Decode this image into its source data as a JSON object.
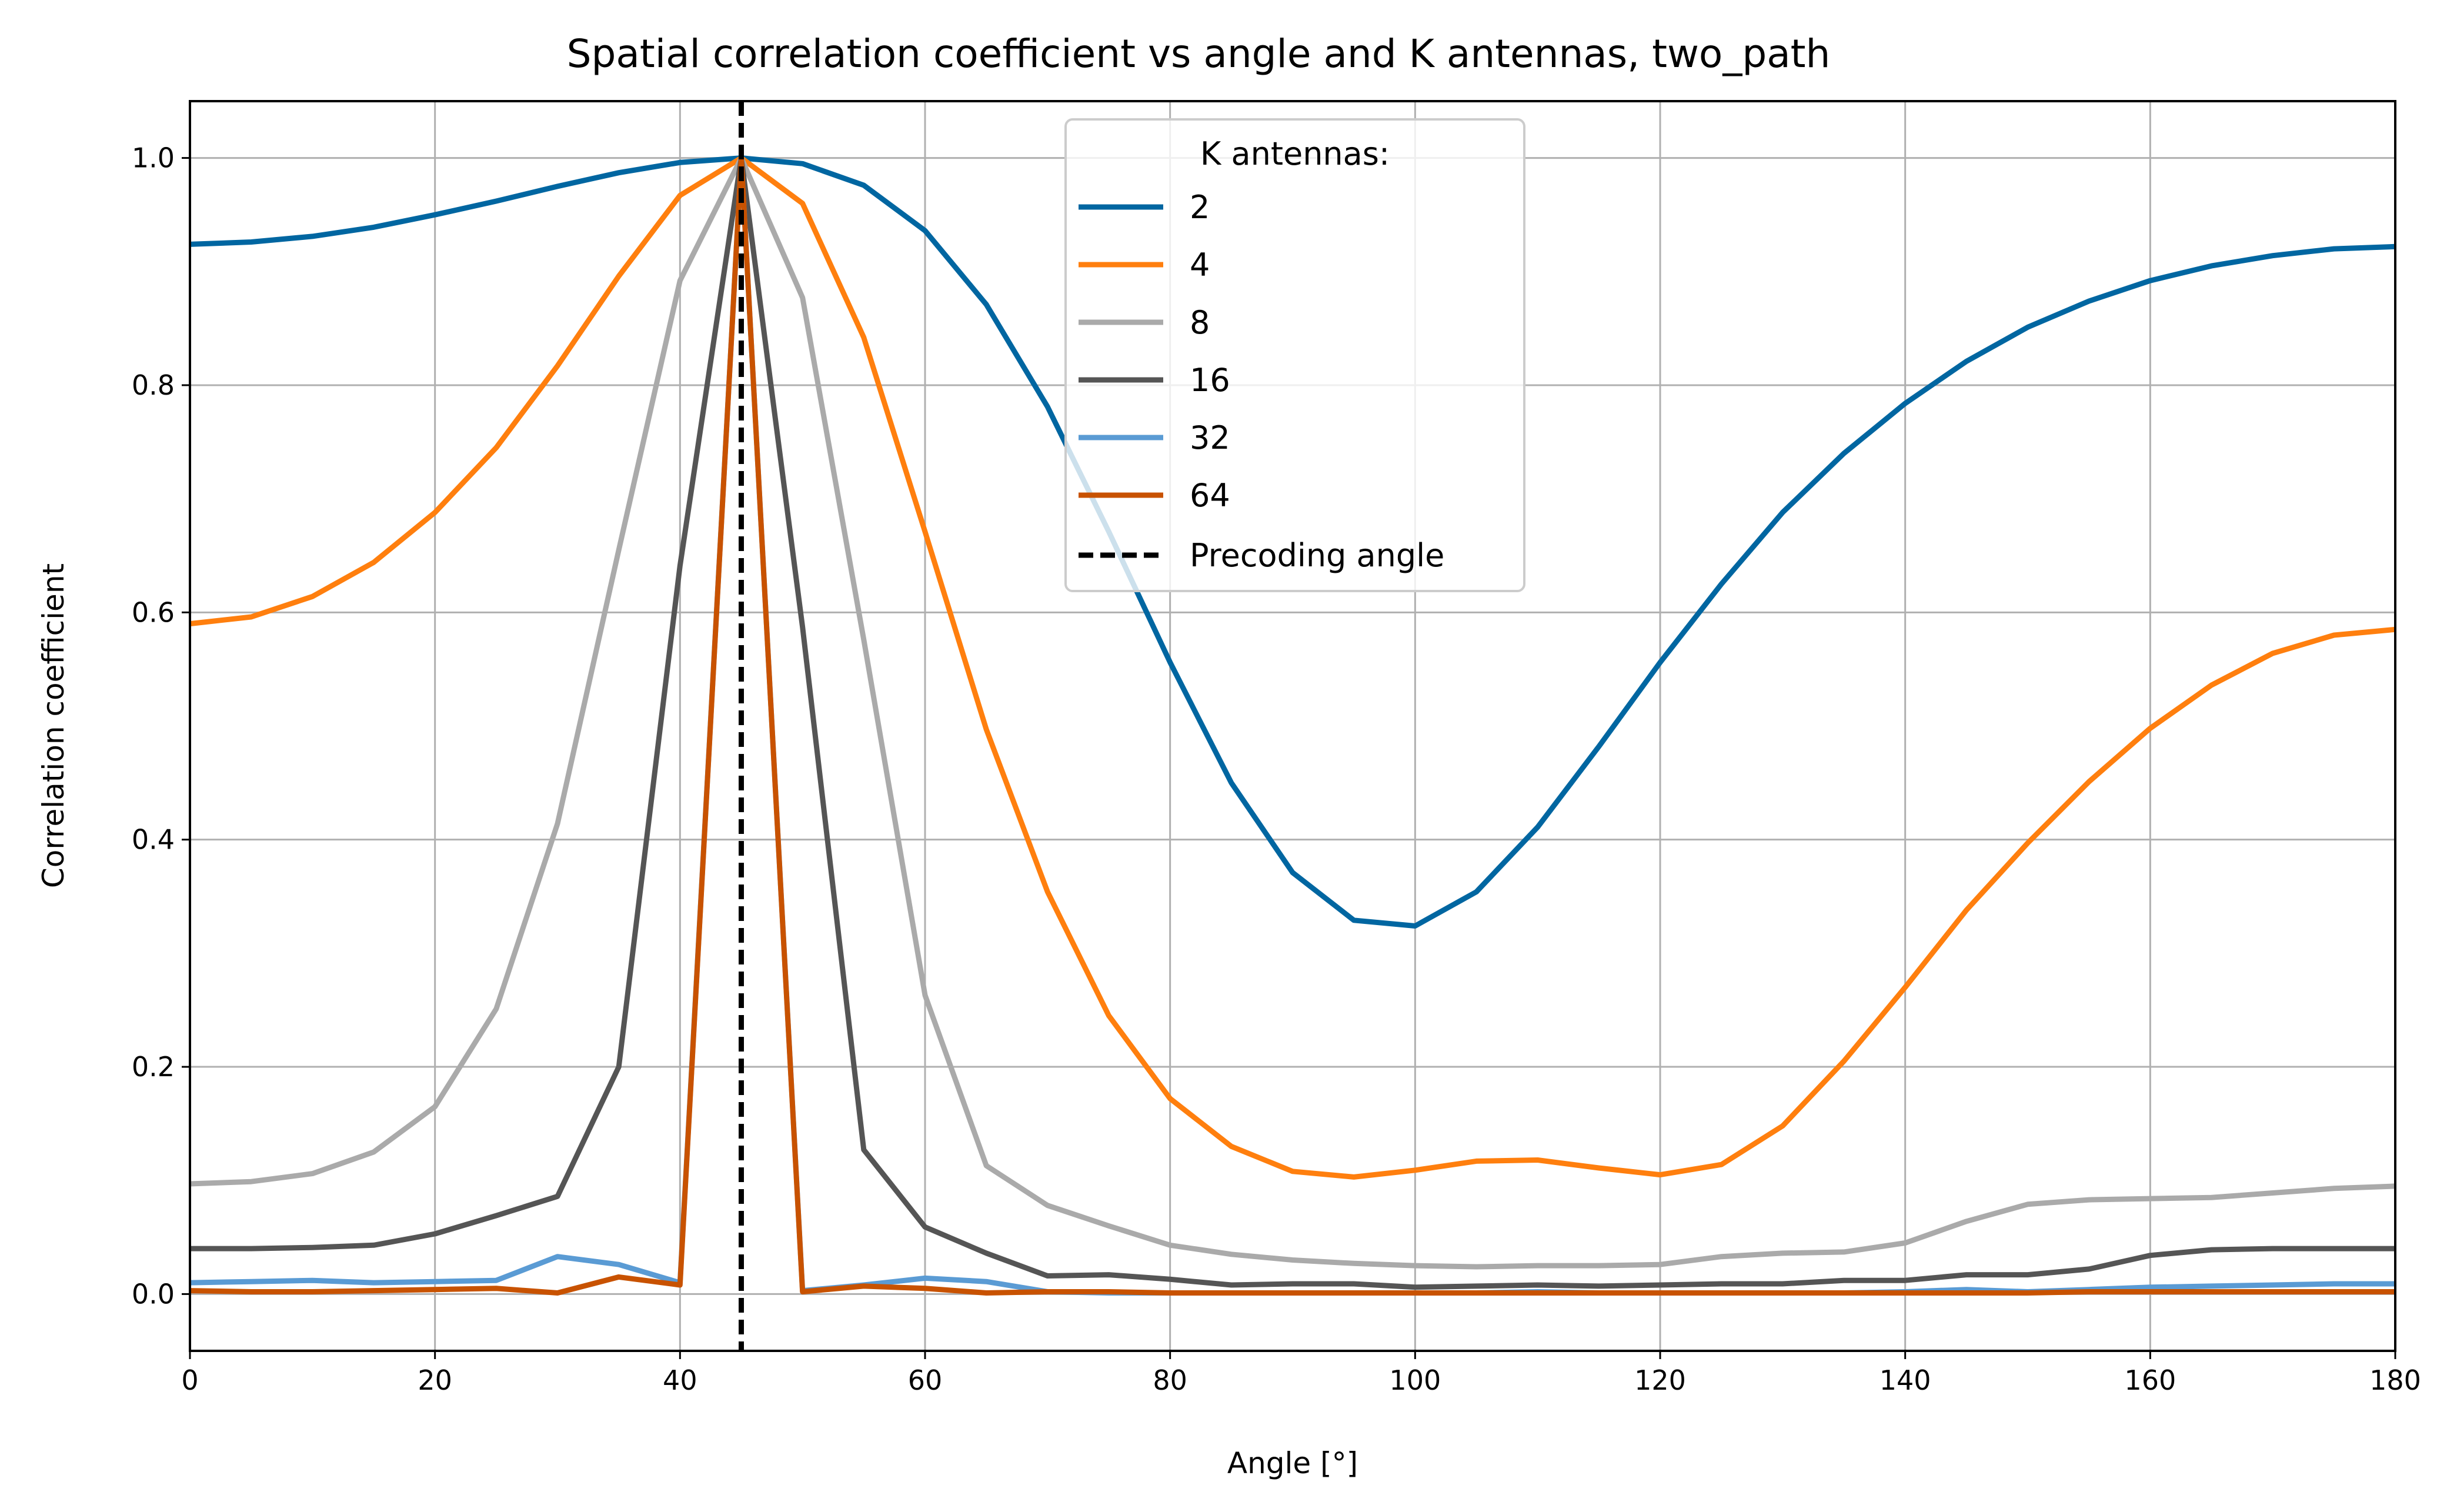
{
  "chart_data": {
    "type": "line",
    "title": "Spatial correlation coefficient vs angle and K antennas, two_path",
    "xlabel": "Angle [°]",
    "ylabel": "Correlation coefficient",
    "xlim": [
      0,
      180
    ],
    "ylim": [
      -0.05,
      1.05
    ],
    "xticks": [
      0,
      20,
      40,
      60,
      80,
      100,
      120,
      140,
      160,
      180
    ],
    "xtick_labels": [
      "0",
      "20",
      "40",
      "60",
      "80",
      "100",
      "120",
      "140",
      "160",
      "180"
    ],
    "yticks": [
      0.0,
      0.2,
      0.4,
      0.6,
      0.8,
      1.0
    ],
    "ytick_labels": [
      "0.0",
      "0.2",
      "0.4",
      "0.6",
      "0.8",
      "1.0"
    ],
    "grid": true,
    "legend": {
      "title": "K antennas:",
      "placement": "top-center",
      "precoding_label": "Precoding angle"
    },
    "precoding_angle": 45,
    "precoding_color": "#000000",
    "x": [
      0,
      5,
      10,
      15,
      20,
      25,
      30,
      35,
      40,
      45,
      50,
      55,
      60,
      65,
      70,
      75,
      80,
      85,
      90,
      95,
      100,
      105,
      110,
      115,
      120,
      125,
      130,
      135,
      140,
      145,
      150,
      155,
      160,
      165,
      170,
      175,
      180
    ],
    "series": [
      {
        "name": "2",
        "color": "#0066a1",
        "values": [
          0.924,
          0.926,
          0.931,
          0.939,
          0.95,
          0.962,
          0.975,
          0.987,
          0.996,
          1.0,
          0.995,
          0.976,
          0.936,
          0.871,
          0.781,
          0.671,
          0.556,
          0.45,
          0.371,
          0.329,
          0.324,
          0.354,
          0.411,
          0.482,
          0.556,
          0.625,
          0.688,
          0.74,
          0.784,
          0.821,
          0.851,
          0.874,
          0.892,
          0.905,
          0.914,
          0.92,
          0.922
        ]
      },
      {
        "name": "4",
        "color": "#ff7f0e",
        "values": [
          0.59,
          0.596,
          0.614,
          0.644,
          0.688,
          0.745,
          0.817,
          0.896,
          0.967,
          1.0,
          0.96,
          0.842,
          0.671,
          0.497,
          0.354,
          0.245,
          0.172,
          0.13,
          0.108,
          0.103,
          0.109,
          0.117,
          0.118,
          0.111,
          0.105,
          0.114,
          0.148,
          0.205,
          0.27,
          0.338,
          0.397,
          0.451,
          0.498,
          0.536,
          0.564,
          0.58,
          0.585
        ]
      },
      {
        "name": "8",
        "color": "#aaaaaa",
        "values": [
          0.097,
          0.099,
          0.106,
          0.125,
          0.165,
          0.251,
          0.414,
          0.655,
          0.892,
          1.0,
          0.877,
          0.576,
          0.263,
          0.113,
          0.078,
          0.06,
          0.043,
          0.035,
          0.03,
          0.027,
          0.025,
          0.024,
          0.025,
          0.025,
          0.026,
          0.033,
          0.036,
          0.037,
          0.045,
          0.064,
          0.079,
          0.083,
          0.084,
          0.085,
          0.089,
          0.093,
          0.095
        ]
      },
      {
        "name": "16",
        "color": "#555555",
        "values": [
          0.04,
          0.04,
          0.041,
          0.043,
          0.053,
          0.069,
          0.086,
          0.2,
          0.641,
          1.0,
          0.587,
          0.127,
          0.059,
          0.036,
          0.016,
          0.017,
          0.013,
          0.008,
          0.009,
          0.009,
          0.006,
          0.007,
          0.008,
          0.007,
          0.008,
          0.009,
          0.009,
          0.012,
          0.012,
          0.017,
          0.017,
          0.022,
          0.034,
          0.039,
          0.04,
          0.04,
          0.04
        ]
      },
      {
        "name": "32",
        "color": "#5a9bd4",
        "values": [
          0.01,
          0.011,
          0.012,
          0.01,
          0.011,
          0.012,
          0.033,
          0.026,
          0.01,
          1.0,
          0.003,
          0.008,
          0.014,
          0.011,
          0.002,
          0.001,
          0.001,
          0.001,
          0.001,
          0.001,
          0.001,
          0.001,
          0.002,
          0.001,
          0.001,
          0.001,
          0.001,
          0.001,
          0.002,
          0.004,
          0.002,
          0.004,
          0.006,
          0.007,
          0.008,
          0.009,
          0.009
        ]
      },
      {
        "name": "64",
        "color": "#c85200",
        "values": [
          0.003,
          0.002,
          0.002,
          0.003,
          0.004,
          0.005,
          0.001,
          0.015,
          0.008,
          1.0,
          0.002,
          0.007,
          0.005,
          0.001,
          0.002,
          0.002,
          0.001,
          0.001,
          0.001,
          0.001,
          0.001,
          0.001,
          0.001,
          0.001,
          0.001,
          0.001,
          0.001,
          0.001,
          0.001,
          0.001,
          0.001,
          0.002,
          0.002,
          0.002,
          0.002,
          0.002,
          0.002
        ]
      }
    ]
  }
}
